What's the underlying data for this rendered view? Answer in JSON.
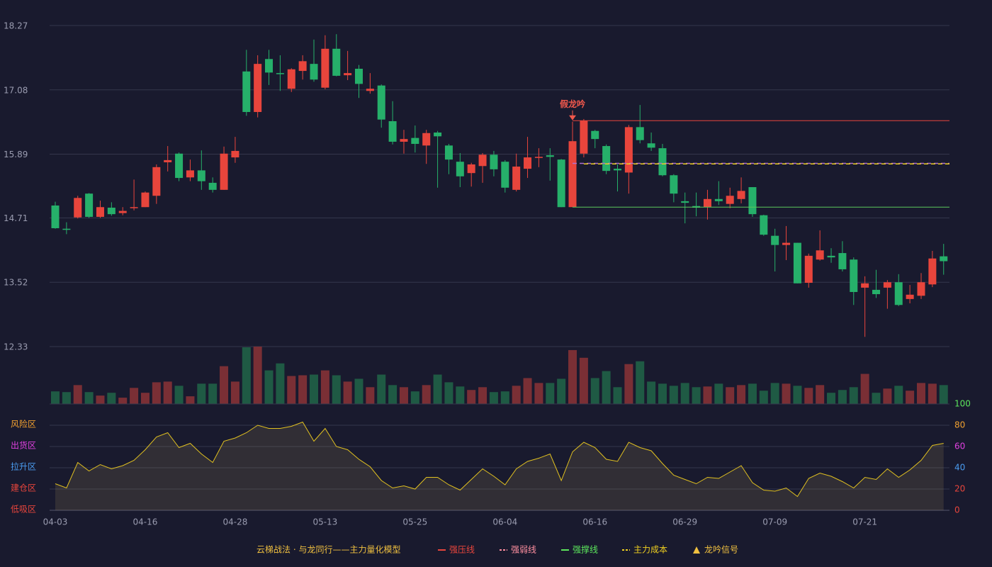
{
  "chart_data": [
    {
      "type": "candlestick",
      "up_color": "#e8453c",
      "down_color": "#26b06a",
      "ylim": [
        12.33,
        18.27
      ],
      "yticks": [
        12.33,
        13.52,
        14.71,
        15.89,
        17.08,
        18.27
      ],
      "grid": true,
      "open": [
        14.94,
        14.51,
        14.72,
        15.16,
        14.73,
        14.9,
        14.8,
        14.89,
        14.91,
        15.12,
        15.74,
        15.9,
        15.46,
        15.59,
        15.36,
        15.23,
        15.83,
        17.42,
        16.67,
        17.65,
        17.39,
        17.1,
        17.43,
        17.56,
        17.12,
        17.84,
        17.35,
        17.47,
        17.06,
        17.16,
        16.5,
        16.12,
        16.19,
        16.05,
        16.29,
        16.05,
        15.75,
        15.54,
        15.67,
        15.88,
        15.75,
        15.23,
        15.62,
        15.82,
        15.87,
        15.79,
        14.91,
        15.9,
        16.32,
        16.04,
        15.62,
        15.55,
        16.39,
        16.09,
        16.0,
        15.5,
        15.02,
        14.93,
        14.91,
        15.06,
        14.97,
        15.06,
        15.28,
        14.76,
        14.38,
        14.21,
        14.25,
        13.51,
        13.94,
        14.01,
        14.06,
        13.94,
        13.42,
        13.38,
        13.42,
        13.52,
        13.21,
        13.27,
        13.48,
        14.0
      ],
      "close": [
        14.52,
        14.49,
        15.08,
        14.73,
        14.91,
        14.78,
        14.84,
        14.91,
        15.18,
        15.65,
        15.78,
        15.45,
        15.59,
        15.39,
        15.23,
        15.9,
        15.95,
        16.67,
        17.56,
        17.4,
        17.37,
        17.46,
        17.61,
        17.27,
        17.84,
        17.34,
        17.39,
        17.19,
        17.1,
        16.53,
        16.12,
        16.17,
        16.08,
        16.28,
        16.22,
        15.79,
        15.48,
        15.7,
        15.88,
        15.61,
        15.27,
        15.66,
        15.83,
        15.84,
        15.84,
        14.91,
        16.13,
        16.51,
        16.17,
        15.58,
        15.59,
        16.39,
        16.15,
        16.01,
        15.5,
        15.16,
        14.99,
        14.9,
        15.06,
        15.02,
        15.12,
        15.21,
        14.78,
        14.4,
        14.21,
        14.25,
        13.5,
        14.01,
        14.11,
        13.98,
        13.76,
        13.34,
        13.5,
        13.3,
        13.52,
        13.1,
        13.29,
        13.52,
        13.96,
        13.91
      ],
      "high": [
        15.01,
        14.63,
        15.12,
        15.17,
        15.03,
        15.0,
        14.91,
        15.42,
        15.2,
        15.7,
        16.04,
        15.92,
        15.79,
        15.96,
        15.46,
        16.03,
        16.21,
        17.82,
        17.72,
        17.82,
        17.72,
        17.48,
        17.72,
        18.01,
        18.09,
        18.11,
        17.8,
        17.54,
        17.39,
        17.18,
        16.87,
        16.34,
        16.42,
        16.34,
        16.32,
        16.08,
        15.91,
        15.73,
        15.91,
        15.95,
        15.78,
        15.9,
        16.21,
        16.0,
        16.0,
        15.8,
        16.49,
        16.54,
        16.34,
        16.07,
        15.7,
        16.43,
        16.8,
        16.29,
        16.08,
        15.52,
        15.18,
        15.18,
        15.23,
        15.39,
        15.27,
        15.46,
        15.28,
        14.77,
        14.51,
        14.56,
        14.25,
        14.05,
        14.48,
        14.15,
        14.28,
        13.98,
        13.63,
        13.75,
        13.56,
        13.67,
        13.47,
        13.69,
        14.1,
        14.23
      ],
      "low": [
        14.51,
        14.41,
        14.7,
        14.71,
        14.71,
        14.75,
        14.76,
        14.85,
        14.91,
        14.97,
        15.57,
        15.39,
        15.39,
        15.23,
        15.18,
        15.23,
        15.73,
        16.6,
        16.57,
        17.17,
        17.06,
        17.04,
        17.27,
        17.23,
        17.09,
        17.33,
        17.26,
        16.93,
        17.01,
        16.38,
        16.07,
        15.9,
        15.92,
        15.71,
        15.27,
        15.52,
        15.28,
        15.29,
        15.36,
        15.48,
        15.18,
        15.2,
        15.45,
        15.65,
        15.4,
        14.91,
        14.91,
        15.83,
        16.0,
        15.52,
        15.2,
        15.16,
        16.09,
        15.95,
        15.48,
        15.0,
        14.61,
        14.74,
        14.68,
        14.95,
        14.89,
        14.98,
        14.73,
        14.38,
        13.72,
        13.93,
        13.5,
        13.42,
        13.92,
        13.88,
        13.72,
        13.1,
        12.51,
        13.23,
        13.03,
        13.08,
        13.13,
        13.21,
        13.43,
        13.66
      ],
      "lines": [
        {
          "value": 16.51,
          "start": 46,
          "color": "#e8453c",
          "dash": false
        },
        {
          "value": 15.72,
          "start": 46,
          "color": "#b070d0",
          "dash": true
        },
        {
          "value": 14.91,
          "start": 46,
          "color": "#5cc85c",
          "dash": false
        },
        {
          "value": 15.71,
          "start": 47,
          "color": "#f0d020",
          "dash": true
        }
      ],
      "signals": [
        {
          "label": "假龙吟",
          "index": 46,
          "color": "#f0584c"
        }
      ]
    },
    {
      "type": "bar",
      "up_color": "#7a2f35",
      "down_color": "#1f5a44",
      "values": [
        18,
        17,
        27,
        17,
        12,
        16,
        9,
        23,
        16,
        31,
        32,
        26,
        11,
        29,
        29,
        54,
        32,
        81,
        82,
        48,
        58,
        40,
        41,
        42,
        48,
        41,
        32,
        36,
        24,
        42,
        27,
        24,
        18,
        27,
        42,
        31,
        25,
        20,
        24,
        17,
        18,
        26,
        37,
        30,
        30,
        36,
        77,
        66,
        37,
        47,
        24,
        57,
        61,
        32,
        29,
        26,
        30,
        24,
        25,
        29,
        24,
        27,
        29,
        19,
        30,
        29,
        26,
        23,
        27,
        16,
        20,
        24,
        43,
        16,
        22,
        26,
        19,
        30,
        29,
        27
      ]
    },
    {
      "type": "area",
      "color": "#e0c020",
      "ylim": [
        0,
        100
      ],
      "yticks": [
        0,
        20,
        40,
        60,
        80,
        100
      ],
      "ytick_colors": [
        "#e8453c",
        "#e8453c",
        "#4a9cf0",
        "#e040e0",
        "#f0a030",
        "#5ce65c"
      ],
      "zones": [
        {
          "label": "低吸区",
          "value": 0,
          "color": "#e8453c"
        },
        {
          "label": "建仓区",
          "value": 20,
          "color": "#e8453c"
        },
        {
          "label": "拉升区",
          "value": 40,
          "color": "#4a9cf0"
        },
        {
          "label": "出货区",
          "value": 60,
          "color": "#e040e0"
        },
        {
          "label": "风险区",
          "value": 80,
          "color": "#f0a030"
        }
      ],
      "categories": [
        "04-03",
        null,
        null,
        null,
        null,
        null,
        null,
        null,
        "04-16",
        null,
        null,
        null,
        null,
        null,
        null,
        null,
        "04-28",
        null,
        null,
        null,
        null,
        null,
        null,
        null,
        "05-13",
        null,
        null,
        null,
        null,
        null,
        null,
        null,
        "05-25",
        null,
        null,
        null,
        null,
        null,
        null,
        null,
        "06-04",
        null,
        null,
        null,
        null,
        null,
        null,
        null,
        "06-16",
        null,
        null,
        null,
        null,
        null,
        null,
        null,
        "06-29",
        null,
        null,
        null,
        null,
        null,
        null,
        null,
        "07-09",
        null,
        null,
        null,
        null,
        null,
        null,
        null,
        "07-21",
        null,
        null,
        null,
        null,
        null,
        null,
        null
      ],
      "values": [
        25,
        21,
        45,
        37,
        43,
        39,
        42,
        47,
        57,
        69,
        73,
        59,
        63,
        53,
        45,
        65,
        68,
        73,
        80,
        77,
        77,
        79,
        83,
        65,
        77,
        60,
        57,
        48,
        41,
        28,
        21,
        23,
        20,
        31,
        31,
        24,
        19,
        29,
        39,
        32,
        24,
        39,
        46,
        49,
        53,
        28,
        55,
        64,
        59,
        48,
        46,
        64,
        59,
        56,
        44,
        33,
        29,
        25,
        31,
        30,
        36,
        42,
        26,
        19,
        18,
        21,
        13,
        30,
        35,
        32,
        27,
        21,
        31,
        29,
        39,
        31,
        38,
        47,
        61,
        63
      ]
    }
  ],
  "legend": {
    "title": "云梯战法 · 与龙同行——主力量化模型",
    "items": [
      {
        "name": "强压线",
        "color": "#e8453c",
        "marker": "line"
      },
      {
        "name": "强弱线",
        "color": "#ff8fa0",
        "marker": "dash"
      },
      {
        "name": "强撑线",
        "color": "#5ce65c",
        "marker": "line"
      },
      {
        "name": "主力成本",
        "color": "#f0d020",
        "marker": "dash"
      },
      {
        "name": "龙吟信号",
        "color": "#f0c040",
        "marker": "triangle"
      }
    ]
  }
}
